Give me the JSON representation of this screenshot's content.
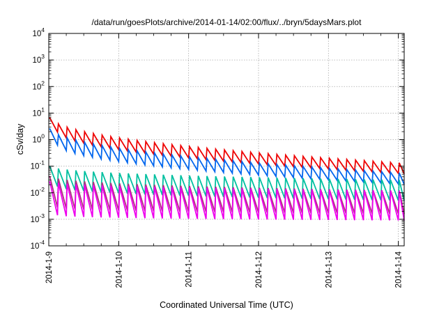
{
  "chart_data": {
    "type": "line",
    "title": "/data/run/goesPlots/archive/2014-01-14/02:00/flux/../bryn/5daysMars.plot",
    "xlabel": "Coordinated Universal Time (UTC)",
    "ylabel": "cSv/day",
    "x_tick_labels": [
      "2014-1-9",
      "2014-1-10",
      "2014-1-11",
      "2014-1-12",
      "2014-1-13",
      "2014-1-14"
    ],
    "y_tick_labels": [
      {
        "base": "10",
        "exp": "4"
      },
      {
        "base": "10",
        "exp": "3"
      },
      {
        "base": "10",
        "exp": "2"
      },
      {
        "base": "10",
        "exp": "1"
      },
      {
        "base": "10",
        "exp": "0"
      },
      {
        "base": "10",
        "exp": "-1"
      },
      {
        "base": "10",
        "exp": "-2"
      },
      {
        "base": "10",
        "exp": "-3"
      },
      {
        "base": "10",
        "exp": "-4"
      }
    ],
    "y_scale": "log",
    "xlim": [
      "2014-01-09 00:00",
      "2014-01-14 02:00"
    ],
    "ylim": [
      0.0001,
      10000
    ],
    "grid": true,
    "period_hours": 3,
    "series": [
      {
        "color": "#ee0000",
        "peak_start": 9.0,
        "peak_end": 0.13,
        "trough_start": 2.5,
        "trough_end": 0.05,
        "decay": 1.0
      },
      {
        "color": "#0066ee",
        "peak_start": 3.5,
        "peak_end": 0.055,
        "trough_start": 0.8,
        "trough_end": 0.02,
        "decay": 1.0
      },
      {
        "color": "#00c0a0",
        "peak_start": 0.12,
        "peak_end": 0.03,
        "trough_start": 0.02,
        "trough_end": 0.005,
        "decay": 0.8
      },
      {
        "color": "#b03080",
        "peak_start": 0.05,
        "peak_end": 0.012,
        "trough_start": 0.003,
        "trough_end": 0.0016,
        "decay": 0.8
      },
      {
        "color": "#ee00ee",
        "peak_start": 0.03,
        "peak_end": 0.012,
        "trough_start": 0.0015,
        "trough_end": 0.0009,
        "decay": 0.8
      }
    ]
  }
}
